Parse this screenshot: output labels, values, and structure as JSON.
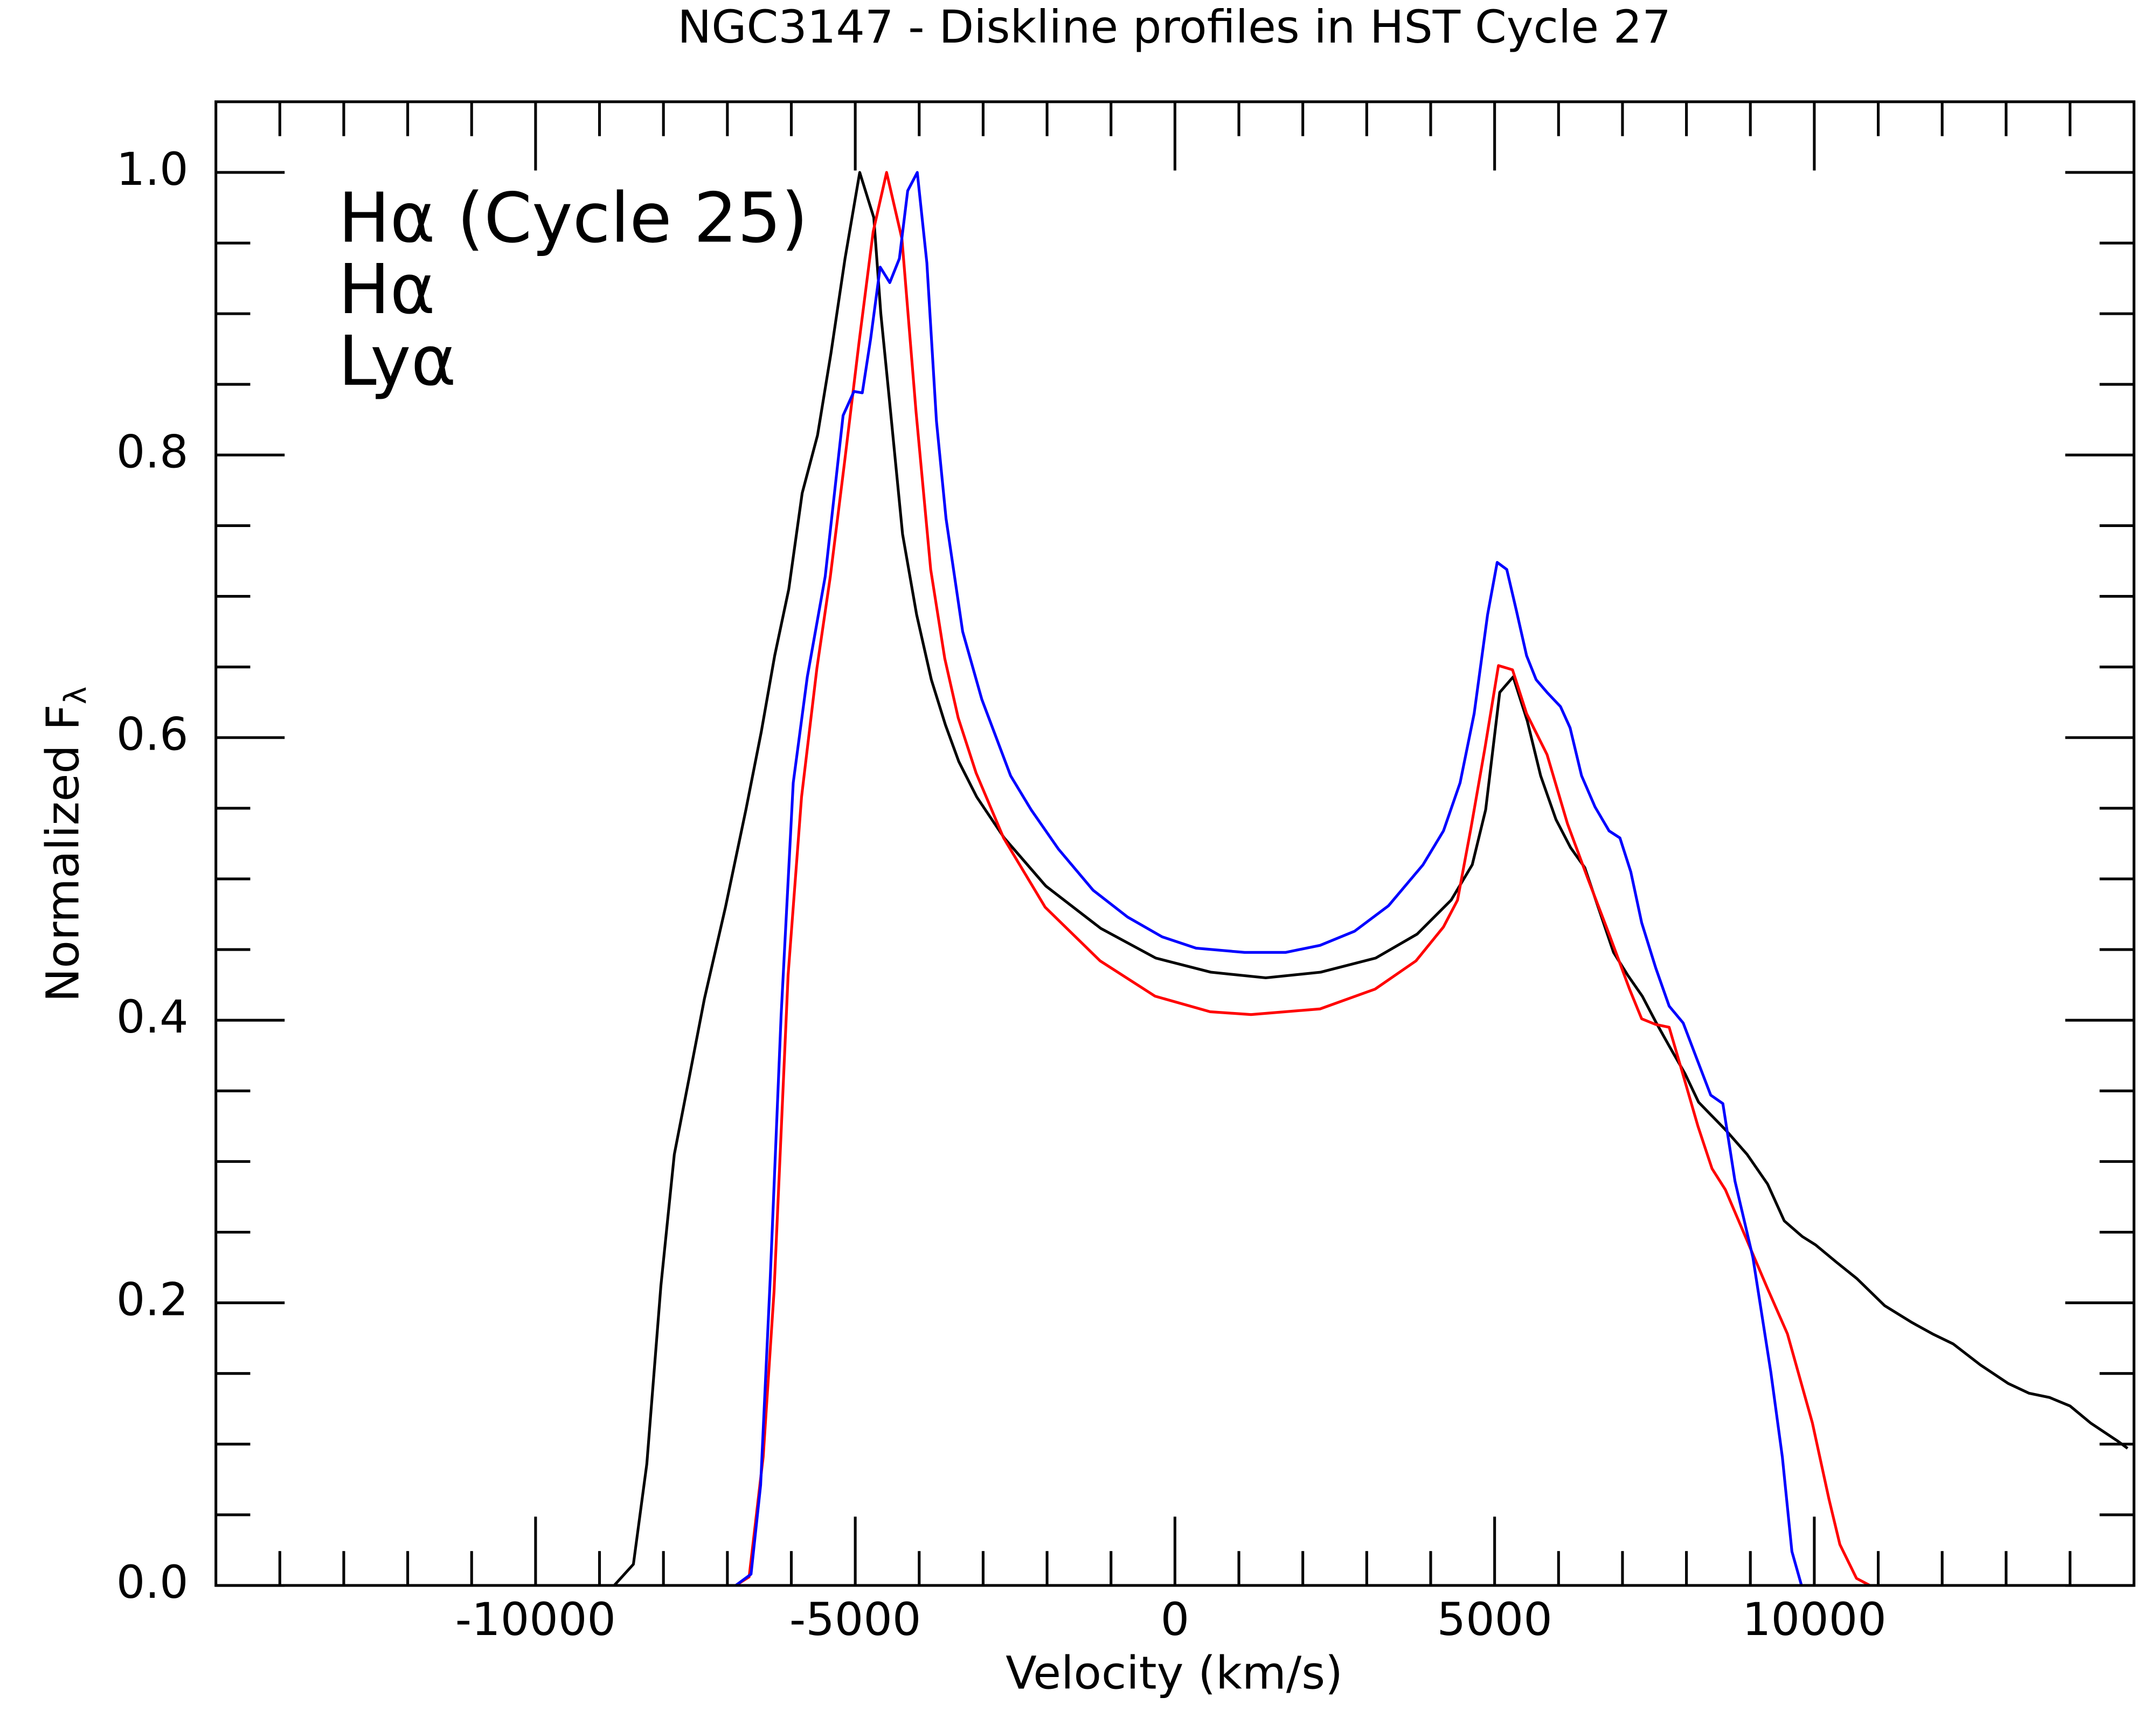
{
  "chart_data": {
    "type": "line",
    "title": "NGC3147 - Diskline profiles in HST Cycle 27",
    "xlabel": "Velocity (km/s)",
    "ylabel": {
      "text": "Normalized F",
      "subscript": "λ"
    },
    "xlim": [
      -15000,
      15000
    ],
    "ylim": [
      0,
      1.05
    ],
    "xticks": [
      -10000,
      -5000,
      0,
      5000,
      10000
    ],
    "xminorticks": [
      -14000,
      -13000,
      -12000,
      -11000,
      -9000,
      -8000,
      -7000,
      -6000,
      -4000,
      -3000,
      -2000,
      -1000,
      1000,
      2000,
      3000,
      4000,
      6000,
      7000,
      8000,
      9000,
      11000,
      12000,
      13000,
      14000
    ],
    "yticks": [
      {
        "value": 0,
        "label": "0.0"
      },
      0.2,
      0.4,
      0.6,
      0.8,
      {
        "value": 1,
        "label": "1.0"
      }
    ],
    "yminorticks": [
      0.05,
      0.1,
      0.15,
      0.25,
      0.3,
      0.35,
      0.45,
      0.5,
      0.55,
      0.65,
      0.7,
      0.75,
      0.85,
      0.9,
      0.95
    ],
    "legend": "upper left",
    "series": [
      {
        "name": "Hα (Cycle 25)",
        "color": "#000000",
        "x": [
          -8770,
          -8470,
          -8260,
          -8040,
          -7830,
          -7590,
          -7360,
          -7030,
          -6710,
          -6470,
          -6260,
          -6040,
          -5830,
          -5590,
          -5380,
          -5160,
          -4930,
          -4710,
          -4600,
          -4470,
          -4260,
          -4040,
          -3810,
          -3590,
          -3380,
          -3100,
          -2670,
          -2020,
          -1160,
          -300,
          560,
          1420,
          2280,
          3140,
          3790,
          4320,
          4650,
          4860,
          5080,
          5290,
          5510,
          5720,
          5960,
          6190,
          6410,
          6620,
          6860,
          7080,
          7310,
          7530,
          7740,
          7980,
          8190,
          8620,
          8950,
          9270,
          9530,
          9810,
          10020,
          10340,
          10670,
          11100,
          11530,
          11850,
          12170,
          12600,
          13030,
          13360,
          13680,
          14000,
          14320,
          14750,
          14900
        ],
        "values": [
          0,
          0.015,
          0.086,
          0.212,
          0.305,
          0.361,
          0.415,
          0.48,
          0.549,
          0.604,
          0.658,
          0.705,
          0.773,
          0.814,
          0.872,
          0.939,
          1.0,
          0.968,
          0.9,
          0.841,
          0.744,
          0.687,
          0.641,
          0.609,
          0.583,
          0.558,
          0.529,
          0.495,
          0.465,
          0.444,
          0.434,
          0.43,
          0.434,
          0.444,
          0.461,
          0.485,
          0.51,
          0.549,
          0.632,
          0.643,
          0.612,
          0.573,
          0.542,
          0.522,
          0.508,
          0.48,
          0.448,
          0.432,
          0.417,
          0.398,
          0.381,
          0.362,
          0.342,
          0.322,
          0.305,
          0.284,
          0.258,
          0.247,
          0.241,
          0.229,
          0.217,
          0.198,
          0.186,
          0.178,
          0.171,
          0.156,
          0.143,
          0.136,
          0.133,
          0.127,
          0.115,
          0.102,
          0.097
        ]
      },
      {
        "name": "Hα",
        "color": "#ff0000",
        "x": [
          -6870,
          -6660,
          -6440,
          -6270,
          -6050,
          -5840,
          -5600,
          -5390,
          -5170,
          -4940,
          -4720,
          -4510,
          -4270,
          -4050,
          -3820,
          -3600,
          -3390,
          -3110,
          -2680,
          -2030,
          -1170,
          -310,
          550,
          1190,
          2270,
          3130,
          3770,
          4200,
          4420,
          4630,
          4850,
          5060,
          5280,
          5500,
          5820,
          6140,
          6460,
          6790,
          7110,
          7300,
          7520,
          7730,
          7950,
          8180,
          8400,
          8610,
          8940,
          9260,
          9580,
          9970,
          10230,
          10400,
          10660,
          10870
        ],
        "values": [
          0,
          0.006,
          0.091,
          0.208,
          0.432,
          0.558,
          0.649,
          0.714,
          0.794,
          0.88,
          0.958,
          1.0,
          0.953,
          0.831,
          0.719,
          0.656,
          0.614,
          0.575,
          0.529,
          0.48,
          0.442,
          0.417,
          0.406,
          0.404,
          0.408,
          0.422,
          0.442,
          0.466,
          0.485,
          0.536,
          0.593,
          0.651,
          0.648,
          0.617,
          0.588,
          0.539,
          0.5,
          0.461,
          0.422,
          0.401,
          0.397,
          0.395,
          0.361,
          0.325,
          0.295,
          0.28,
          0.245,
          0.211,
          0.178,
          0.115,
          0.061,
          0.029,
          0.005,
          0
        ]
      },
      {
        "name": "Lyα",
        "color": "#0000ff",
        "x": [
          -6870,
          -6630,
          -6480,
          -6330,
          -6160,
          -5970,
          -5750,
          -5470,
          -5190,
          -5020,
          -4890,
          -4760,
          -4610,
          -4460,
          -4310,
          -4180,
          -4030,
          -3880,
          -3730,
          -3580,
          -3320,
          -3020,
          -2570,
          -2250,
          -1820,
          -1280,
          -740,
          -200,
          330,
          1090,
          1730,
          2270,
          2810,
          3340,
          3880,
          4200,
          4460,
          4680,
          4890,
          5040,
          5190,
          5340,
          5500,
          5650,
          5820,
          6030,
          6180,
          6360,
          6570,
          6790,
          6960,
          7130,
          7300,
          7520,
          7730,
          7950,
          8160,
          8380,
          8570,
          8760,
          9040,
          9320,
          9500,
          9650,
          9800
        ],
        "values": [
          0,
          0.008,
          0.071,
          0.217,
          0.403,
          0.568,
          0.643,
          0.714,
          0.828,
          0.845,
          0.844,
          0.882,
          0.933,
          0.922,
          0.939,
          0.987,
          1.0,
          0.936,
          0.824,
          0.755,
          0.675,
          0.627,
          0.573,
          0.549,
          0.521,
          0.492,
          0.473,
          0.459,
          0.451,
          0.448,
          0.448,
          0.453,
          0.463,
          0.481,
          0.51,
          0.534,
          0.568,
          0.617,
          0.687,
          0.724,
          0.719,
          0.69,
          0.658,
          0.641,
          0.632,
          0.622,
          0.607,
          0.573,
          0.551,
          0.534,
          0.529,
          0.505,
          0.469,
          0.437,
          0.41,
          0.398,
          0.373,
          0.347,
          0.341,
          0.286,
          0.232,
          0.151,
          0.091,
          0.024,
          0
        ]
      }
    ]
  }
}
